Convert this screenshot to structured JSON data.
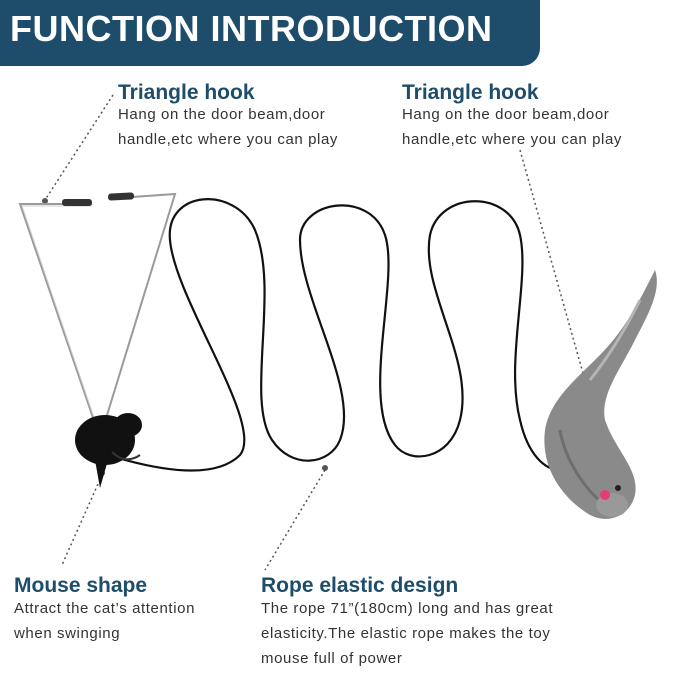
{
  "banner": {
    "title": "FUNCTION INTRODUCTION"
  },
  "features": {
    "hook_left": {
      "title": "Triangle hook",
      "line1": "Hang on the door beam,door",
      "line2": "handle,etc where you can play"
    },
    "hook_right": {
      "title": "Triangle hook",
      "line1": "Hang on the door beam,door",
      "line2": "handle,etc where you can play"
    },
    "mouse": {
      "title": "Mouse shape",
      "line1": "Attract the cat’s attention",
      "line2": "when swinging"
    },
    "rope": {
      "title": "Rope elastic design",
      "line1": "The rope 71”(180cm) long and has great",
      "line2": "elasticity.The elastic rope makes the toy",
      "line3": "mouse full of power"
    }
  },
  "colors": {
    "banner": "#1e4d6b",
    "heading": "#1e4d6b",
    "body_text": "#333333",
    "rope": "#111111",
    "plush": "#8a8a8a"
  }
}
